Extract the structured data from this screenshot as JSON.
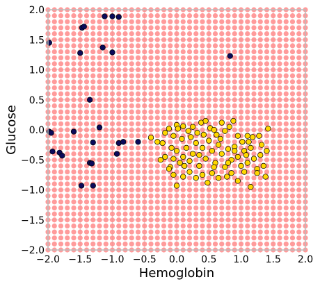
{
  "chart_data": {
    "type": "scatter",
    "xlabel": "Hemoglobin",
    "ylabel": "Glucose",
    "xlim": [
      -2.0,
      2.0
    ],
    "ylim": [
      -2.0,
      2.0
    ],
    "grid": true,
    "x_ticks": [
      "−2.0",
      "−1.5",
      "−1.0",
      "−0.5",
      "0.0",
      "0.5",
      "1.0",
      "1.5",
      "2.0"
    ],
    "y_ticks": [
      "−2.0",
      "−1.5",
      "−1.0",
      "−0.5",
      "0.0",
      "0.5",
      "1.0",
      "1.5",
      "2.0"
    ],
    "colors": {
      "background_points": "#ff8a8a",
      "class_0": "#0a0a5a",
      "class_1": "#ffd700",
      "frame": "#bcbcbc",
      "grid": "#cfcfcf"
    },
    "background_grid": {
      "step": 0.1,
      "x": [
        -2.0,
        2.0
      ],
      "y": [
        -2.0,
        2.0
      ]
    },
    "series": [
      {
        "color_key": "class_0",
        "points": [
          [
            -1.98,
            1.45
          ],
          [
            -1.5,
            1.28
          ],
          [
            -1.47,
            1.7
          ],
          [
            -1.44,
            1.72
          ],
          [
            -1.12,
            1.89
          ],
          [
            -1.0,
            1.89
          ],
          [
            -0.9,
            1.88
          ],
          [
            -1.15,
            1.37
          ],
          [
            -1.0,
            1.29
          ],
          [
            -1.35,
            0.5
          ],
          [
            0.83,
            1.23
          ],
          [
            -1.98,
            -0.03
          ],
          [
            -1.95,
            -0.05
          ],
          [
            -1.93,
            -0.36
          ],
          [
            -1.82,
            -0.38
          ],
          [
            -1.78,
            -0.43
          ],
          [
            -1.6,
            -0.03
          ],
          [
            -1.3,
            -0.21
          ],
          [
            -1.2,
            0.04
          ],
          [
            -0.9,
            -0.22
          ],
          [
            -0.83,
            -0.2
          ],
          [
            -0.6,
            -0.2
          ],
          [
            -0.93,
            -0.4
          ],
          [
            -1.35,
            -0.55
          ],
          [
            -1.32,
            -0.56
          ],
          [
            -1.48,
            -0.93
          ],
          [
            -1.3,
            -0.93
          ]
        ]
      },
      {
        "color_key": "class_1",
        "points": [
          [
            -0.4,
            -0.13
          ],
          [
            -0.22,
            -0.22
          ],
          [
            -0.18,
            -0.05
          ],
          [
            -0.12,
            0.02
          ],
          [
            -0.05,
            -0.1
          ],
          [
            0.0,
            0.08
          ],
          [
            0.02,
            0.02
          ],
          [
            0.1,
            0.06
          ],
          [
            0.18,
            -0.02
          ],
          [
            0.25,
            0.05
          ],
          [
            0.32,
            -0.05
          ],
          [
            0.38,
            0.12
          ],
          [
            0.45,
            0.15
          ],
          [
            0.52,
            0.03
          ],
          [
            0.58,
            0.0
          ],
          [
            0.62,
            -0.08
          ],
          [
            0.7,
            0.12
          ],
          [
            0.75,
            -0.02
          ],
          [
            0.82,
            0.05
          ],
          [
            0.88,
            0.15
          ],
          [
            0.95,
            -0.1
          ],
          [
            1.02,
            -0.2
          ],
          [
            1.1,
            -0.1
          ],
          [
            1.18,
            -0.12
          ],
          [
            1.28,
            -0.1
          ],
          [
            1.42,
            0.02
          ],
          [
            -0.25,
            -0.5
          ],
          [
            -0.18,
            -0.45
          ],
          [
            -0.1,
            -0.62
          ],
          [
            -0.05,
            -0.48
          ],
          [
            0.0,
            -0.35
          ],
          [
            0.05,
            -0.55
          ],
          [
            0.1,
            -0.45
          ],
          [
            0.15,
            -0.3
          ],
          [
            0.2,
            -0.52
          ],
          [
            0.25,
            -0.4
          ],
          [
            0.3,
            -0.22
          ],
          [
            0.35,
            -0.6
          ],
          [
            0.4,
            -0.3
          ],
          [
            0.45,
            -0.48
          ],
          [
            0.5,
            -0.18
          ],
          [
            0.55,
            -0.35
          ],
          [
            0.6,
            -0.55
          ],
          [
            0.65,
            -0.25
          ],
          [
            0.7,
            -0.4
          ],
          [
            0.75,
            -0.62
          ],
          [
            0.8,
            -0.32
          ],
          [
            0.85,
            -0.5
          ],
          [
            0.9,
            -0.28
          ],
          [
            0.95,
            -0.45
          ],
          [
            1.0,
            -0.6
          ],
          [
            1.05,
            -0.35
          ],
          [
            1.1,
            -0.55
          ],
          [
            1.15,
            -0.3
          ],
          [
            1.2,
            -0.48
          ],
          [
            1.25,
            -0.65
          ],
          [
            1.3,
            -0.42
          ],
          [
            1.35,
            -0.6
          ],
          [
            1.4,
            -0.35
          ],
          [
            -0.12,
            -0.65
          ],
          [
            -0.05,
            -0.75
          ],
          [
            0.0,
            -0.93
          ],
          [
            0.1,
            -0.78
          ],
          [
            0.2,
            -0.7
          ],
          [
            0.3,
            -0.8
          ],
          [
            0.4,
            -0.75
          ],
          [
            0.48,
            -0.88
          ],
          [
            0.55,
            -0.72
          ],
          [
            0.65,
            -0.8
          ],
          [
            0.78,
            -0.78
          ],
          [
            0.85,
            -0.72
          ],
          [
            0.95,
            -0.85
          ],
          [
            1.05,
            -0.7
          ],
          [
            1.15,
            -0.95
          ],
          [
            1.25,
            -0.72
          ],
          [
            1.38,
            -0.78
          ],
          [
            -0.3,
            -0.2
          ],
          [
            0.08,
            -0.15
          ],
          [
            0.22,
            -0.12
          ],
          [
            0.42,
            -0.08
          ],
          [
            0.68,
            -0.15
          ],
          [
            0.9,
            -0.35
          ],
          [
            1.12,
            -0.2
          ],
          [
            -0.08,
            -0.3
          ],
          [
            0.12,
            -0.6
          ],
          [
            0.35,
            -0.42
          ],
          [
            0.58,
            -0.62
          ],
          [
            0.8,
            -0.55
          ],
          [
            1.08,
            -0.42
          ],
          [
            1.32,
            -0.25
          ]
        ]
      }
    ]
  }
}
